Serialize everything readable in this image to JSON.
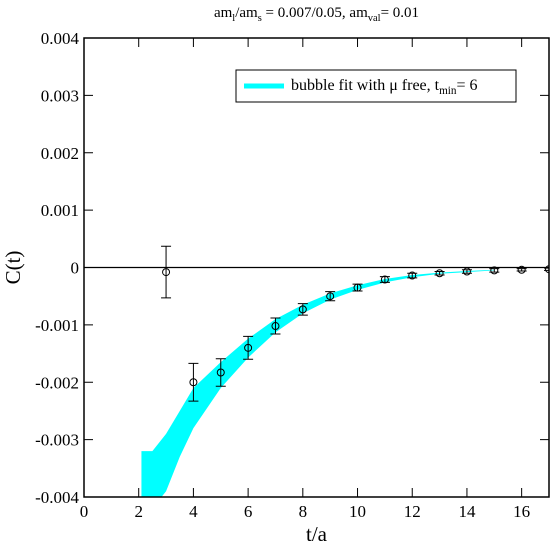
{
  "chart_data": {
    "type": "errorbar",
    "title": [
      {
        "text": "am"
      },
      {
        "text": "l",
        "sub": true
      },
      {
        "text": "/am"
      },
      {
        "text": "s",
        "sub": true
      },
      {
        "text": " = 0.007/0.05, am"
      },
      {
        "text": "val",
        "sub": true
      },
      {
        "text": "= 0.01"
      }
    ],
    "x_label": "t/a",
    "y_label": "C(t)",
    "xlim": [
      0,
      17
    ],
    "ylim": [
      -0.004,
      0.004
    ],
    "xticks": [
      0,
      2,
      4,
      6,
      8,
      10,
      12,
      14,
      16
    ],
    "yticks": [
      -0.004,
      -0.003,
      -0.002,
      -0.001,
      0,
      0.001,
      0.002,
      0.003,
      0.004
    ],
    "hline": 0,
    "legend_position": "upper right",
    "band": {
      "name": [
        {
          "text": "bubble fit with μ free, t"
        },
        {
          "text": "min",
          "sub": true
        },
        {
          "text": "= 6"
        }
      ],
      "color": "#00ffff",
      "x": [
        2.1,
        2.5,
        3,
        3.5,
        4,
        5,
        6,
        7,
        8,
        9,
        10,
        11,
        12,
        13,
        14,
        15
      ],
      "upper": [
        -0.0032,
        -0.0032,
        -0.0029,
        -0.0025,
        -0.0021,
        -0.00165,
        -0.00124,
        -0.0009,
        -0.00065,
        -0.00045,
        -0.00031,
        -0.0002,
        -0.00013,
        -9e-05,
        -6e-05,
        -4e-05
      ],
      "lower": [
        -0.0042,
        -0.0042,
        -0.0039,
        -0.0033,
        -0.0028,
        -0.0021,
        -0.00157,
        -0.00113,
        -0.0008,
        -0.00056,
        -0.00039,
        -0.00026,
        -0.00017,
        -0.00011,
        -8e-05,
        -5e-05
      ]
    },
    "points": {
      "x": [
        3,
        4,
        5,
        6,
        7,
        8,
        9,
        10,
        11,
        12,
        13,
        14,
        15,
        16,
        17
      ],
      "values": [
        -8e-05,
        -0.002,
        -0.00183,
        -0.0014,
        -0.00102,
        -0.00073,
        -0.0005,
        -0.00035,
        -0.00021,
        -0.00014,
        -0.0001,
        -7e-05,
        -5e-05,
        -4e-05,
        -3e-05
      ],
      "errors": [
        0.00045,
        0.00033,
        0.00024,
        0.0002,
        0.00014,
        0.0001,
        8e-05,
        6e-05,
        5e-05,
        4e-05,
        3e-05,
        3e-05,
        3e-05,
        2e-05,
        2e-05
      ],
      "color": "#000000"
    }
  }
}
